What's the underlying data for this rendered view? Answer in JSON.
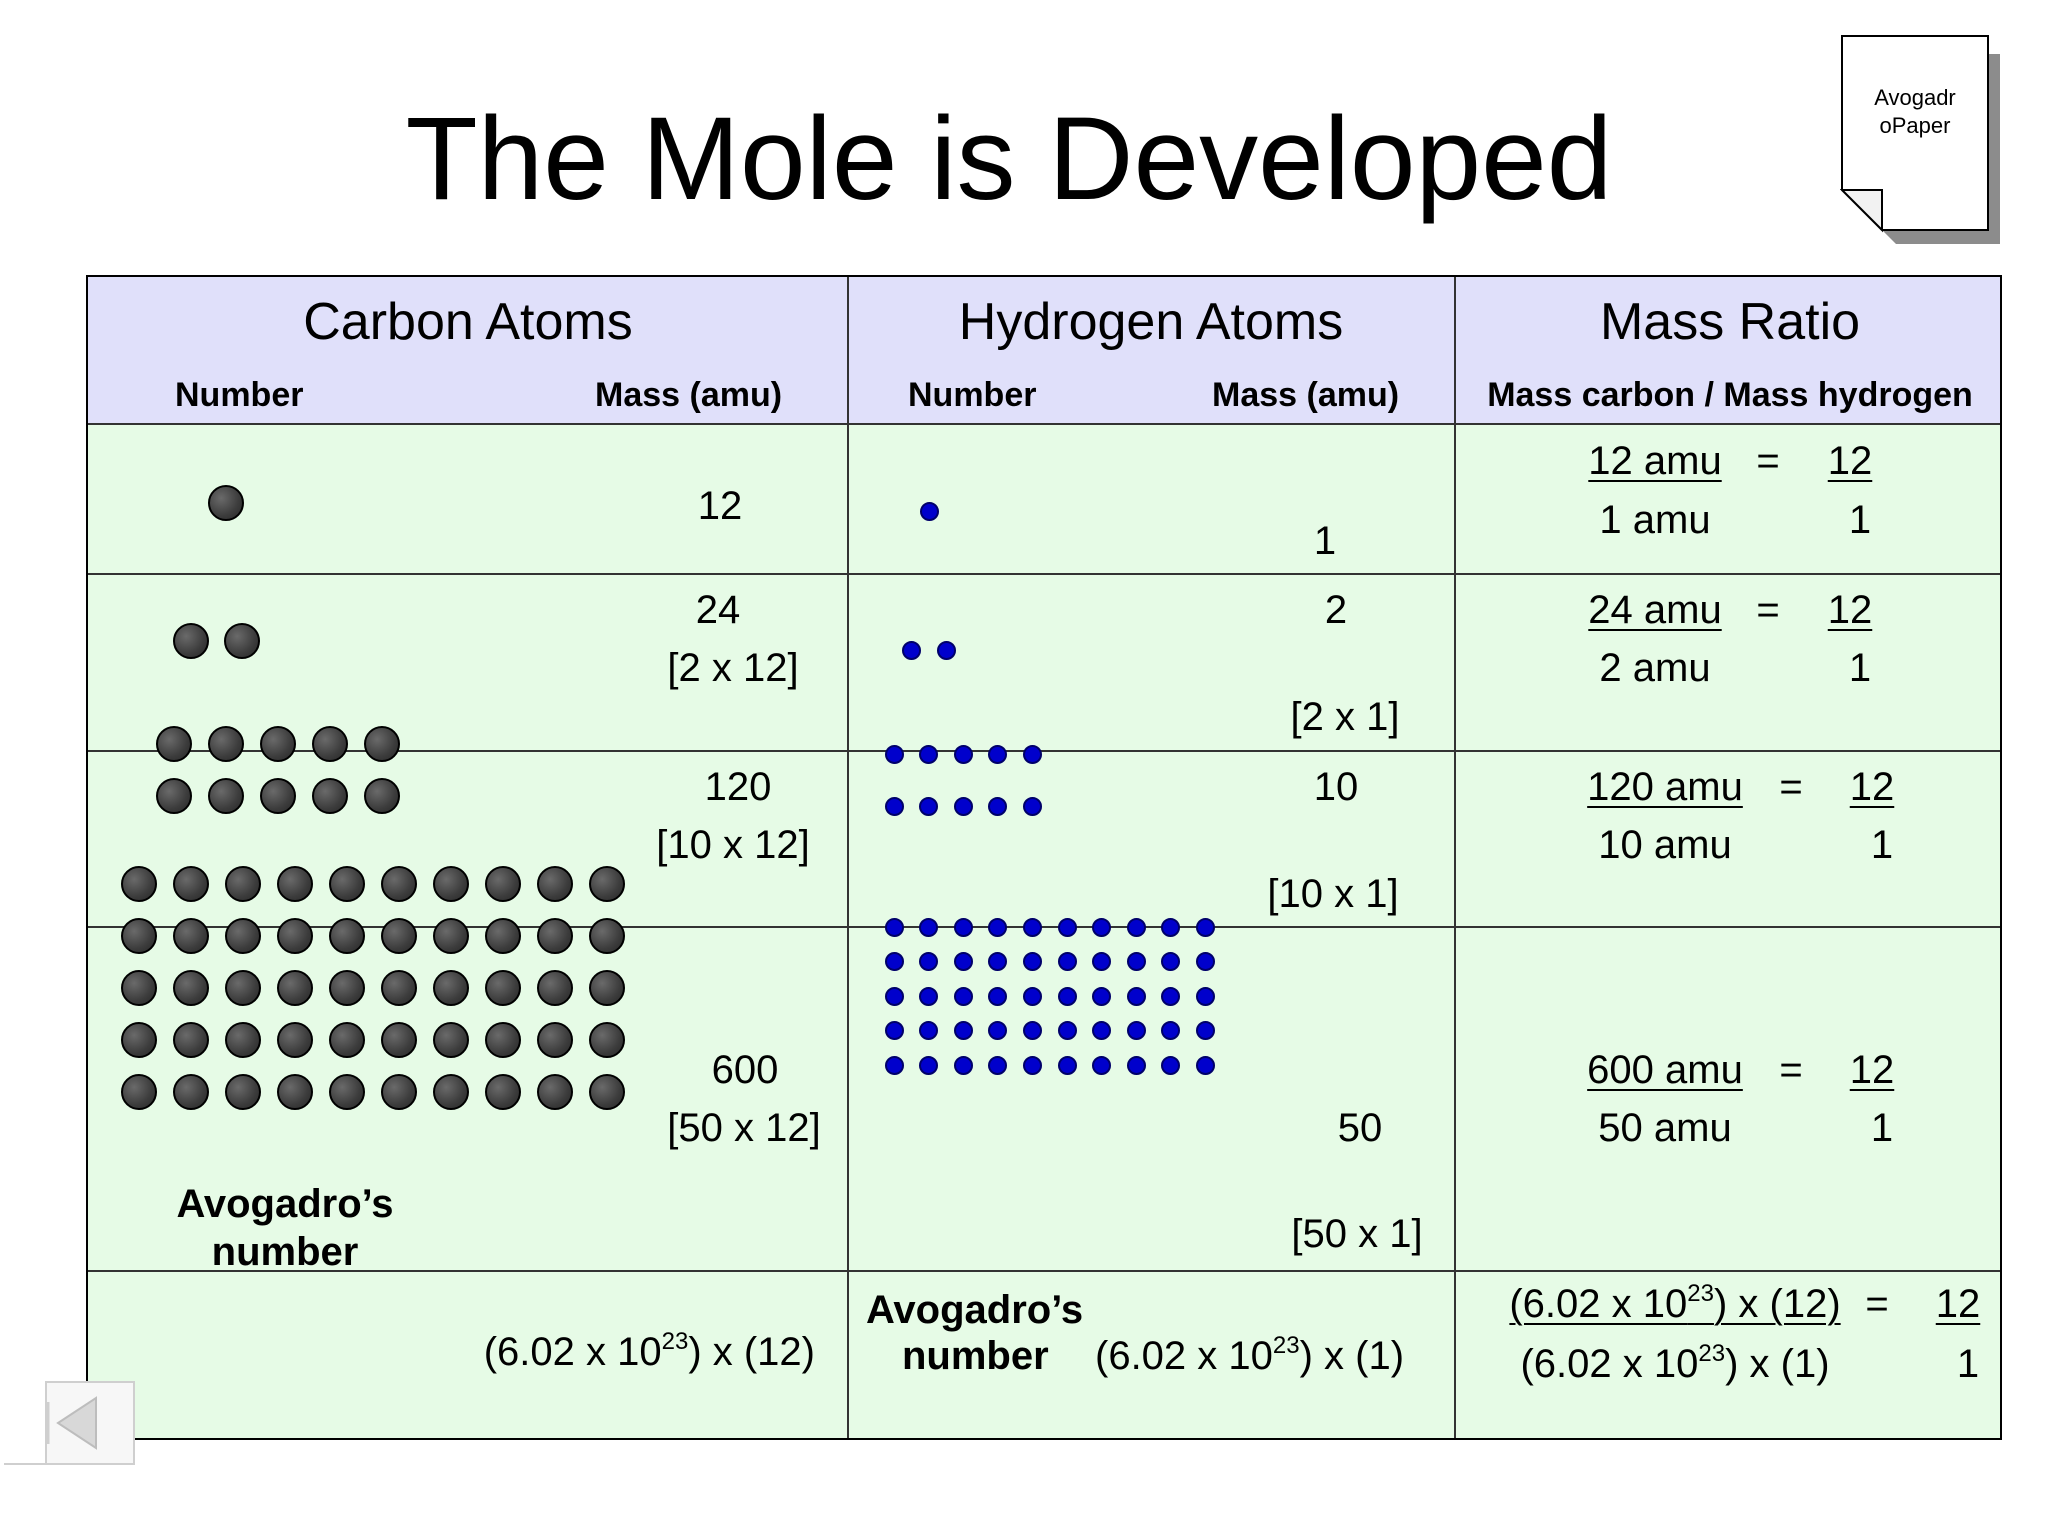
{
  "title": "The Mole is Developed",
  "paper_icon": {
    "label_line1": "Avogadr",
    "label_line2": "oPaper"
  },
  "table": {
    "headers": {
      "carbon": "Carbon Atoms",
      "hydrogen": "Hydrogen Atoms",
      "ratio": "Mass Ratio"
    },
    "subheaders": {
      "carbon_number": "Number",
      "carbon_mass": "Mass (amu)",
      "hydrogen_number": "Number",
      "hydrogen_mass": "Mass (amu)",
      "ratio_desc": "Mass carbon / Mass hydrogen"
    },
    "rows": [
      {
        "carbon_count": 1,
        "hydrogen_count": 1,
        "carbon_mass": "12",
        "carbon_mult": "",
        "hydrogen_mass": "1",
        "hydrogen_mult": "",
        "ratio_num": "12 amu",
        "ratio_den": "1 amu",
        "eq": "=",
        "res_num": "12",
        "res_den": "1"
      },
      {
        "carbon_count": 2,
        "hydrogen_count": 2,
        "carbon_mass": "24",
        "carbon_mult": "[2 x 12]",
        "hydrogen_mass": "2",
        "hydrogen_mult": "[2 x 1]",
        "ratio_num": "24 amu",
        "ratio_den": "2 amu",
        "eq": "=",
        "res_num": "12",
        "res_den": "1"
      },
      {
        "carbon_count": 10,
        "hydrogen_count": 10,
        "carbon_mass": "120",
        "carbon_mult": "[10 x 12]",
        "hydrogen_mass": "10",
        "hydrogen_mult": "[10 x 1]",
        "ratio_num": "120 amu",
        "ratio_den": "10 amu",
        "eq": "=",
        "res_num": "12",
        "res_den": "1"
      },
      {
        "carbon_count": 50,
        "hydrogen_count": 50,
        "carbon_mass": "600",
        "carbon_mult": "[50 x 12]",
        "hydrogen_mass": "50",
        "hydrogen_mult": "[50 x 1]",
        "ratio_num": "600 amu",
        "ratio_den": "50 amu",
        "eq": "=",
        "res_num": "12",
        "res_den": "1"
      }
    ],
    "avogadro_label_line1": "Avogadro’s",
    "avogadro_label_line2": "number",
    "last_row": {
      "carbon_expr_pre": "(6.02 x 10",
      "exp": "23",
      "carbon_expr_post": ") x (12)",
      "hydrogen_label_line1": "Avogadro’s",
      "hydrogen_label_line2": "number",
      "hydrogen_expr_pre": "(6.02 x 10",
      "hydrogen_expr_post": ") x (1)",
      "ratio_num_pre": "(6.02 x 10",
      "ratio_num_post": ") x (12)",
      "ratio_den_pre": "(6.02 x 10",
      "ratio_den_post": ") x (1)",
      "eq": "=",
      "res_num": "12",
      "res_den": "1"
    }
  },
  "nav": {
    "back_icon": "back-arrow-icon"
  },
  "colors": {
    "header_bg": "#e0e0fa",
    "body_bg": "#e6fbe6",
    "hydrogen_atom": "#0000cc",
    "carbon_atom": "#3c3c3c"
  }
}
